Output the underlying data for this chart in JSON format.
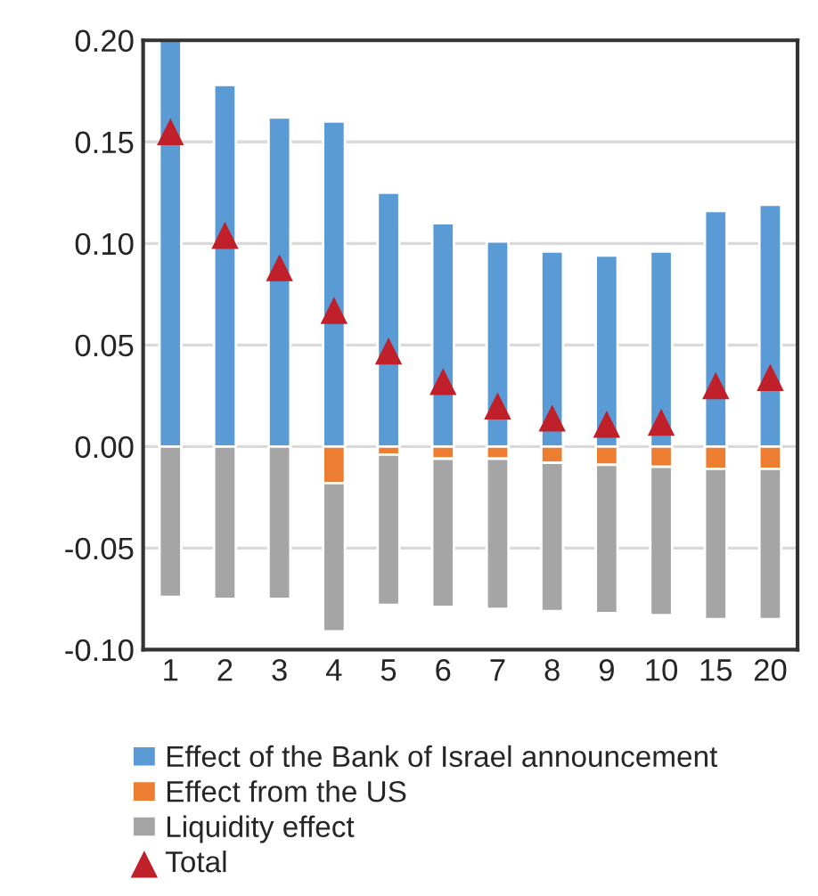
{
  "chart_data": {
    "type": "bar",
    "stacked": true,
    "categories": [
      "1",
      "2",
      "3",
      "4",
      "5",
      "6",
      "7",
      "8",
      "9",
      "10",
      "15",
      "20"
    ],
    "series": [
      {
        "name": "Effect of the Bank of Israel announcement",
        "color": "#5b9bd5",
        "values": [
          0.2,
          0.178,
          0.162,
          0.16,
          0.125,
          0.11,
          0.101,
          0.096,
          0.094,
          0.096,
          0.116,
          0.119
        ]
      },
      {
        "name": "Effect from the US",
        "color": "#ed7d31",
        "values": [
          null,
          null,
          null,
          -0.018,
          -0.004,
          -0.006,
          -0.006,
          -0.008,
          -0.009,
          -0.01,
          -0.011,
          -0.011
        ]
      },
      {
        "name": "Liquidity effect",
        "color": "#a5a5a5",
        "values": [
          -0.074,
          -0.075,
          -0.075,
          -0.073,
          -0.074,
          -0.073,
          -0.074,
          -0.073,
          -0.073,
          -0.073,
          -0.074,
          -0.074
        ]
      },
      {
        "name": "Total",
        "type": "scatter",
        "marker": "triangle",
        "color": "#c0202a",
        "values": [
          0.155,
          0.104,
          0.088,
          0.067,
          0.047,
          0.032,
          0.02,
          0.014,
          0.011,
          0.012,
          0.03,
          0.034
        ]
      }
    ],
    "ylim": [
      -0.1,
      0.2
    ],
    "yticks": [
      {
        "value": -0.1,
        "label": "-0.10"
      },
      {
        "value": -0.05,
        "label": "-0.05"
      },
      {
        "value": 0,
        "label": "0.00"
      },
      {
        "value": 0.05,
        "label": "0.05"
      },
      {
        "value": 0.1,
        "label": "0.10"
      },
      {
        "value": 0.15,
        "label": "0.15"
      },
      {
        "value": 0.2,
        "label": "0.20"
      }
    ],
    "grid": "y",
    "legend": "bottom"
  }
}
